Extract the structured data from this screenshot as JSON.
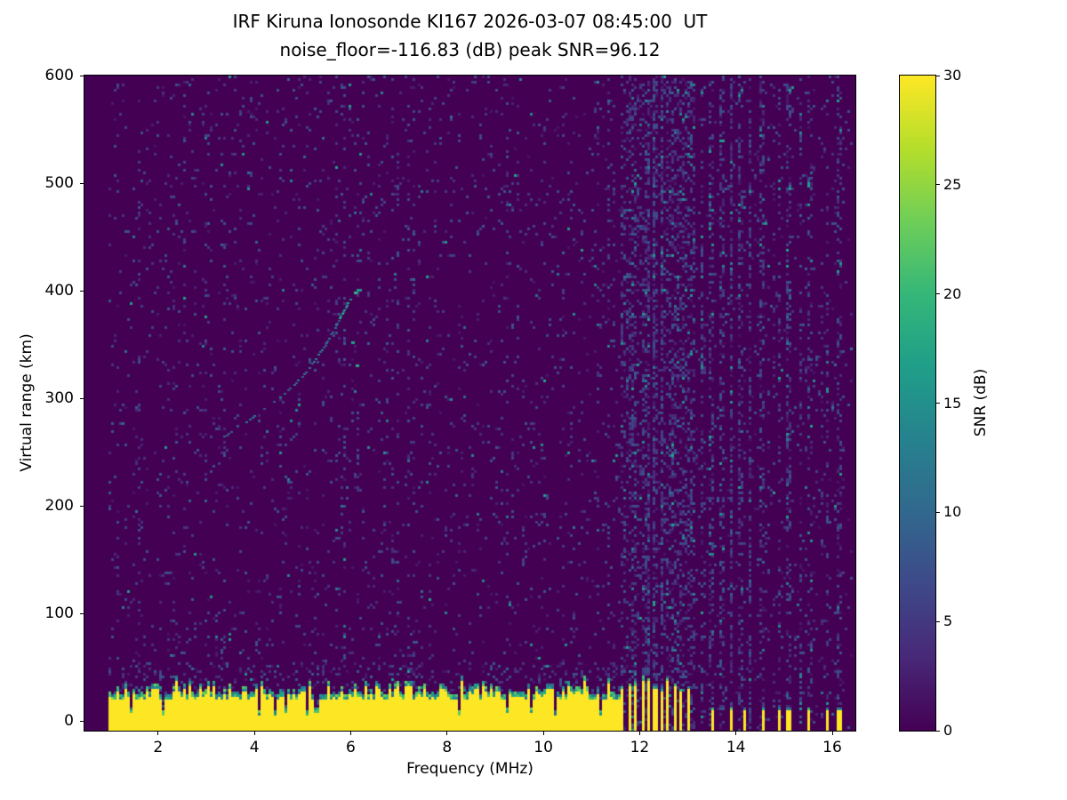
{
  "figure": {
    "title_line1": "IRF Kiruna Ionosonde KI167 2026-03-07 08:45:00  UT",
    "title_line2": "noise_floor=-116.83 (dB) peak SNR=96.12",
    "background": "#ffffff"
  },
  "chart_data": {
    "type": "heatmap",
    "station": "IRF Kiruna Ionosonde KI167",
    "timestamp_ut": "2026-03-07 08:45:00",
    "noise_floor_db": -116.83,
    "peak_snr_db": 96.12,
    "xlabel": "Frequency (MHz)",
    "ylabel": "Virtual range (km)",
    "xlim": [
      0.47,
      16.48
    ],
    "ylim": [
      -9,
      600
    ],
    "x_ticks": [
      2,
      4,
      6,
      8,
      10,
      12,
      14,
      16
    ],
    "y_ticks": [
      0,
      100,
      200,
      300,
      400,
      500,
      600
    ],
    "grid": false,
    "colorbar": {
      "label": "SNR (dB)",
      "min": 0,
      "max": 30,
      "ticks": [
        0,
        5,
        10,
        15,
        20,
        25,
        30
      ],
      "colormap": "viridis"
    },
    "colormap_stops": [
      "#440154",
      "#482878",
      "#3e4989",
      "#31688e",
      "#26828e",
      "#1f9e89",
      "#35b779",
      "#6ece58",
      "#b5de2b",
      "#fde725"
    ],
    "features": {
      "data_extent_mhz": [
        0.97,
        16.45
      ],
      "background_snr_db": 0,
      "ground_clutter": {
        "freq_start": 0.97,
        "freq_end": 11.62,
        "base_top_km": 20,
        "jitter_km": 13,
        "spike_prob": 0.07,
        "notch_prob": 0.05,
        "snr_db": 30
      },
      "rfi_barcode": {
        "freq_start": 11.62,
        "freq_end": 13.05,
        "period_mhz": 0.135,
        "duty": 0.48,
        "top_km_min": 26,
        "top_km_max": 40,
        "snr_db": 30
      },
      "sporadic_bars": {
        "frequencies": [
          13.5,
          13.9,
          14.2,
          14.55,
          14.9,
          15.1,
          15.5,
          15.9,
          16.15
        ],
        "width_mhz": 0.035,
        "top_km": 11,
        "snr_db": 30
      },
      "rfi_columns": {
        "frequencies": [
          11.7,
          11.85,
          12.0,
          12.15,
          12.3,
          12.5,
          12.65,
          12.8,
          12.95,
          13.1,
          13.3,
          13.5,
          13.7,
          13.9,
          14.1,
          14.3,
          14.55,
          14.9,
          15.1,
          15.35,
          15.55,
          15.9,
          16.15
        ],
        "extra_density": 0.28
      },
      "noise_speckle": {
        "base_density": 0.045,
        "low_alt_extra": 0.1,
        "low_alt_km": 55,
        "typical_db_range": [
          1.5,
          8
        ],
        "bright_db_range": [
          8,
          17
        ]
      },
      "echo_trace": {
        "description": "faint ionospheric echo rising from ~3.3 MHz 265 km to ~6.1 MHz 400 km",
        "points": [
          [
            3.35,
            265
          ],
          [
            3.6,
            272
          ],
          [
            3.85,
            280
          ],
          [
            4.1,
            288
          ],
          [
            4.35,
            296
          ],
          [
            4.6,
            305
          ],
          [
            4.85,
            315
          ],
          [
            5.05,
            325
          ],
          [
            5.25,
            337
          ],
          [
            5.45,
            350
          ],
          [
            5.6,
            362
          ],
          [
            5.75,
            375
          ],
          [
            5.9,
            387
          ],
          [
            6.0,
            395
          ],
          [
            6.1,
            400
          ]
        ],
        "bright_points": [
          [
            6.08,
            398,
            20
          ],
          [
            6.02,
            352,
            17
          ],
          [
            6.12,
            331,
            18
          ]
        ],
        "snr_db": 12
      }
    }
  }
}
